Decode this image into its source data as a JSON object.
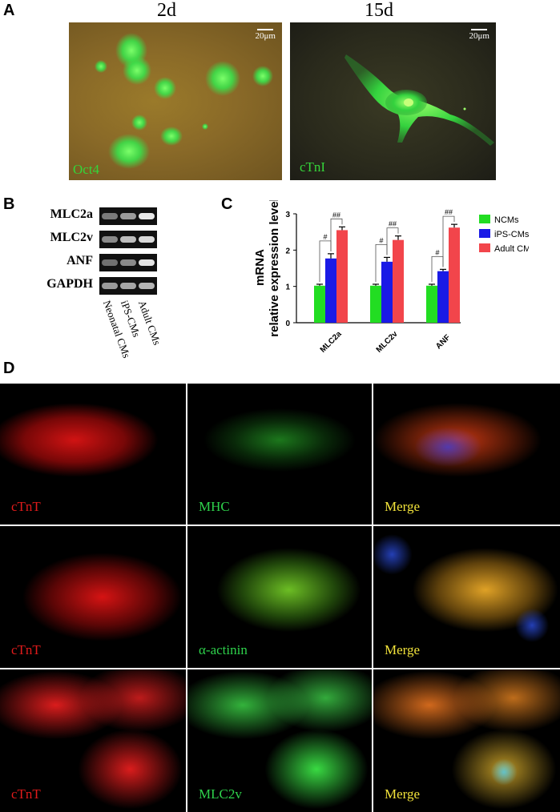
{
  "panels": {
    "A": "A",
    "B": "B",
    "C": "C",
    "D": "D"
  },
  "panelA": {
    "left": {
      "title": "2d",
      "channel": "Oct4",
      "scale": "20μm",
      "channel_color": "#35d43a"
    },
    "right": {
      "title": "15d",
      "channel": "cTnI",
      "scale": "20μm",
      "channel_color": "#35d43a"
    }
  },
  "panelB": {
    "genes": [
      "MLC2a",
      "MLC2v",
      "ANF",
      "GAPDH"
    ],
    "lanes": [
      "Neonatal CMs",
      "iPS-CMs",
      "Adult CMs"
    ]
  },
  "panelD": {
    "rows": [
      {
        "labels": [
          "cTnT",
          "MHC",
          "Merge"
        ]
      },
      {
        "labels": [
          "cTnT",
          "α-actinin",
          "Merge"
        ]
      },
      {
        "labels": [
          "cTnT",
          "MLC2v",
          "Merge"
        ]
      }
    ],
    "label_colors": [
      "#e11b1b",
      "#2ed14b",
      "#f2e33b"
    ]
  },
  "chart_data": {
    "type": "bar",
    "ylabel_line1": "mRNA",
    "ylabel_line2": "relative expression level",
    "categories": [
      "MLC2a",
      "MLC2v",
      "ANF"
    ],
    "ylim": [
      0,
      3
    ],
    "yticks": [
      "0",
      "1",
      "2",
      "3"
    ],
    "series": [
      {
        "name": "NCMs",
        "color": "#22dd22",
        "values": [
          1.02,
          1.02,
          1.02
        ],
        "errors": [
          0.04,
          0.04,
          0.04
        ]
      },
      {
        "name": "iPS-CMs",
        "color": "#1a1ae6",
        "values": [
          1.77,
          1.68,
          1.42
        ],
        "errors": [
          0.13,
          0.12,
          0.05
        ]
      },
      {
        "name": "Adult CMs",
        "color": "#f2454b",
        "values": [
          2.55,
          2.28,
          2.62
        ],
        "errors": [
          0.09,
          0.11,
          0.09
        ]
      }
    ],
    "significance": [
      {
        "category": "MLC2a",
        "pairs": [
          [
            "NCMs",
            "iPS-CMs",
            "#"
          ],
          [
            "iPS-CMs",
            "Adult CMs",
            "##"
          ]
        ]
      },
      {
        "category": "MLC2v",
        "pairs": [
          [
            "NCMs",
            "iPS-CMs",
            "#"
          ],
          [
            "iPS-CMs",
            "Adult CMs",
            "##"
          ]
        ]
      },
      {
        "category": "ANF",
        "pairs": [
          [
            "NCMs",
            "iPS-CMs",
            "#"
          ],
          [
            "iPS-CMs",
            "Adult CMs",
            "##"
          ]
        ]
      }
    ],
    "legend_position": "right"
  }
}
